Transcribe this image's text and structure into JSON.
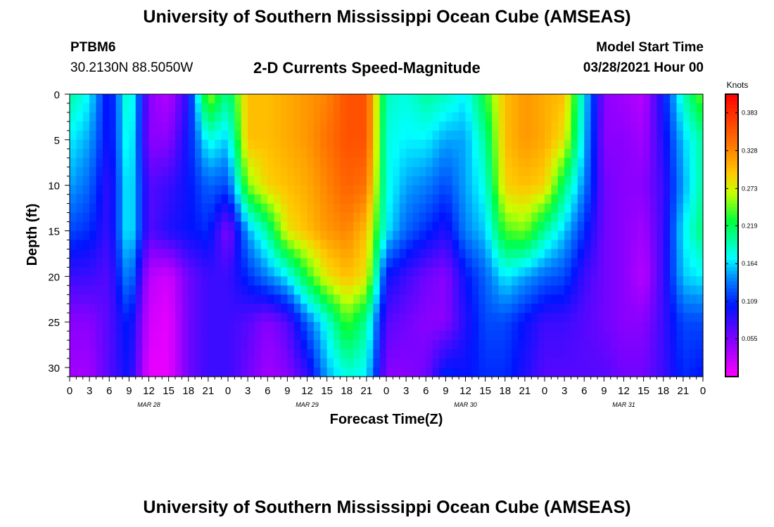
{
  "header": {
    "top_title": "University of Southern Mississippi Ocean Cube (AMSEAS)",
    "bottom_title": "University of Southern Mississippi Ocean Cube (AMSEAS)",
    "station_id": "PTBM6",
    "station_coords": "30.2130N  88.5050W",
    "subtitle": "2-D Currents Speed-Magnitude",
    "model_start_label": "Model Start Time",
    "model_start_value": "03/28/2021 Hour 00"
  },
  "chart_data": {
    "type": "heatmap",
    "title": "2-D Currents Speed-Magnitude",
    "xlabel": "Forecast Time(Z)",
    "ylabel": "Depth (ft)",
    "x_tick_labels": [
      "0",
      "3",
      "6",
      "9",
      "12",
      "15",
      "18",
      "21",
      "0",
      "3",
      "6",
      "9",
      "12",
      "15",
      "18",
      "21",
      "0",
      "3",
      "6",
      "9",
      "12",
      "15",
      "18",
      "21",
      "0",
      "3",
      "6",
      "9",
      "12",
      "15",
      "18",
      "21",
      "0"
    ],
    "x_range_hours": [
      0,
      96
    ],
    "date_labels": [
      {
        "hour": 12,
        "label": "MAR 28"
      },
      {
        "hour": 36,
        "label": "MAR 29"
      },
      {
        "hour": 60,
        "label": "MAR 30"
      },
      {
        "hour": 84,
        "label": "MAR 31"
      }
    ],
    "y_tick_labels": [
      "0",
      "5",
      "10",
      "15",
      "20",
      "25",
      "30"
    ],
    "y_range_ft": [
      0,
      31
    ],
    "y_reversed": true,
    "colorbar": {
      "unit": "Knots",
      "tick_labels": [
        "0.383",
        "0.328",
        "0.273",
        "0.219",
        "0.164",
        "0.109",
        "0.055"
      ],
      "range": [
        0,
        0.41
      ]
    },
    "depths_ft": [
      0,
      5,
      10,
      15,
      20,
      25,
      31
    ],
    "hours": [
      0,
      3,
      6,
      9,
      12,
      15,
      18,
      21,
      24,
      27,
      30,
      33,
      36,
      39,
      42,
      45,
      48,
      51,
      54,
      57,
      60,
      63,
      66,
      69,
      72,
      75,
      78,
      81,
      84,
      87,
      90,
      93,
      96
    ],
    "values_knots": [
      [
        0.2,
        0.17,
        0.09,
        0.2,
        0.05,
        0.03,
        0.09,
        0.26,
        0.2,
        0.3,
        0.3,
        0.31,
        0.32,
        0.33,
        0.36,
        0.36,
        0.19,
        0.18,
        0.2,
        0.19,
        0.17,
        0.23,
        0.3,
        0.32,
        0.31,
        0.3,
        0.17,
        0.05,
        0.04,
        0.03,
        0.1,
        0.19,
        0.25
      ],
      [
        0.17,
        0.15,
        0.09,
        0.19,
        0.05,
        0.05,
        0.1,
        0.18,
        0.16,
        0.3,
        0.3,
        0.31,
        0.32,
        0.34,
        0.36,
        0.36,
        0.18,
        0.17,
        0.17,
        0.15,
        0.15,
        0.2,
        0.3,
        0.32,
        0.31,
        0.28,
        0.16,
        0.05,
        0.05,
        0.04,
        0.09,
        0.16,
        0.2
      ],
      [
        0.15,
        0.13,
        0.08,
        0.18,
        0.07,
        0.08,
        0.1,
        0.13,
        0.12,
        0.25,
        0.29,
        0.3,
        0.31,
        0.33,
        0.35,
        0.34,
        0.18,
        0.15,
        0.14,
        0.12,
        0.15,
        0.18,
        0.29,
        0.3,
        0.29,
        0.21,
        0.14,
        0.06,
        0.05,
        0.05,
        0.08,
        0.15,
        0.2
      ],
      [
        0.12,
        0.11,
        0.08,
        0.18,
        0.07,
        0.09,
        0.1,
        0.11,
        0.05,
        0.15,
        0.2,
        0.28,
        0.3,
        0.32,
        0.33,
        0.3,
        0.17,
        0.13,
        0.11,
        0.09,
        0.14,
        0.16,
        0.24,
        0.25,
        0.2,
        0.16,
        0.11,
        0.06,
        0.05,
        0.04,
        0.08,
        0.17,
        0.21
      ],
      [
        0.08,
        0.08,
        0.07,
        0.15,
        0.03,
        0.02,
        0.06,
        0.08,
        0.08,
        0.11,
        0.14,
        0.17,
        0.23,
        0.28,
        0.3,
        0.28,
        0.1,
        0.08,
        0.06,
        0.05,
        0.1,
        0.13,
        0.17,
        0.15,
        0.13,
        0.12,
        0.08,
        0.06,
        0.05,
        0.03,
        0.08,
        0.16,
        0.17
      ],
      [
        0.05,
        0.05,
        0.07,
        0.11,
        0.02,
        0.01,
        0.06,
        0.08,
        0.08,
        0.07,
        0.05,
        0.07,
        0.13,
        0.18,
        0.24,
        0.2,
        0.07,
        0.06,
        0.05,
        0.05,
        0.09,
        0.12,
        0.12,
        0.1,
        0.08,
        0.08,
        0.07,
        0.06,
        0.05,
        0.05,
        0.08,
        0.12,
        0.12
      ],
      [
        0.04,
        0.04,
        0.07,
        0.1,
        0.01,
        0.01,
        0.06,
        0.08,
        0.08,
        0.06,
        0.04,
        0.05,
        0.08,
        0.15,
        0.18,
        0.17,
        0.05,
        0.05,
        0.06,
        0.11,
        0.1,
        0.11,
        0.11,
        0.09,
        0.07,
        0.07,
        0.07,
        0.07,
        0.06,
        0.06,
        0.08,
        0.11,
        0.1
      ]
    ]
  }
}
